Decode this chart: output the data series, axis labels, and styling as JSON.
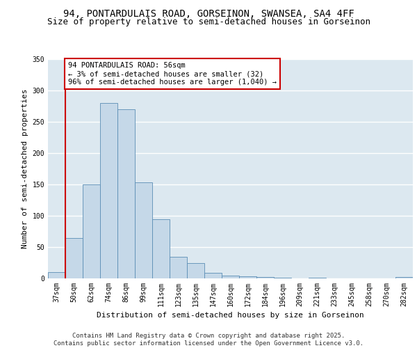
{
  "title_line1": "94, PONTARDULAIS ROAD, GORSEINON, SWANSEA, SA4 4FF",
  "title_line2": "Size of property relative to semi-detached houses in Gorseinon",
  "xlabel": "Distribution of semi-detached houses by size in Gorseinon",
  "ylabel": "Number of semi-detached properties",
  "categories": [
    "37sqm",
    "50sqm",
    "62sqm",
    "74sqm",
    "86sqm",
    "99sqm",
    "111sqm",
    "123sqm",
    "135sqm",
    "147sqm",
    "160sqm",
    "172sqm",
    "184sqm",
    "196sqm",
    "209sqm",
    "221sqm",
    "233sqm",
    "245sqm",
    "258sqm",
    "270sqm",
    "282sqm"
  ],
  "values": [
    10,
    65,
    150,
    280,
    270,
    153,
    95,
    35,
    25,
    9,
    5,
    3,
    2,
    1,
    0,
    1,
    0,
    0,
    0,
    0,
    2
  ],
  "bar_color": "#c5d8e8",
  "bar_edge_color": "#5a8db5",
  "vline_x": 0.5,
  "vline_color": "#cc0000",
  "annotation_text": "94 PONTARDULAIS ROAD: 56sqm\n← 3% of semi-detached houses are smaller (32)\n96% of semi-detached houses are larger (1,040) →",
  "annotation_box_color": "#ffffff",
  "annotation_box_edge_color": "#cc0000",
  "ylim": [
    0,
    350
  ],
  "yticks": [
    0,
    50,
    100,
    150,
    200,
    250,
    300,
    350
  ],
  "footer_line1": "Contains HM Land Registry data © Crown copyright and database right 2025.",
  "footer_line2": "Contains public sector information licensed under the Open Government Licence v3.0.",
  "background_color": "#dce8f0",
  "grid_color": "#ffffff",
  "title_fontsize": 10,
  "subtitle_fontsize": 9,
  "label_fontsize": 8,
  "tick_fontsize": 7,
  "annotation_fontsize": 7.5,
  "footer_fontsize": 6.5
}
